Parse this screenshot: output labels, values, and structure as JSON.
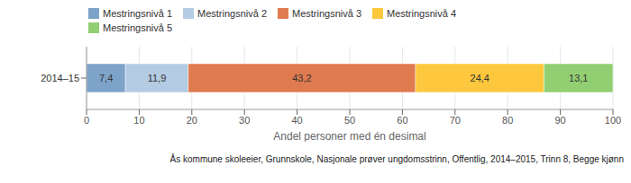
{
  "chart_data": {
    "type": "bar",
    "orientation": "horizontal",
    "stacked": true,
    "categories": [
      "2014–15"
    ],
    "series": [
      {
        "name": "Mestringsnivå 1",
        "color": "#7ea3c9",
        "values": [
          7.4
        ],
        "value_labels": [
          "7,4"
        ]
      },
      {
        "name": "Mestringsnivå 2",
        "color": "#b3cbe3",
        "values": [
          11.9
        ],
        "value_labels": [
          "11,9"
        ]
      },
      {
        "name": "Mestringsnivå 3",
        "color": "#e07b50",
        "values": [
          43.2
        ],
        "value_labels": [
          "43,2"
        ]
      },
      {
        "name": "Mestringsnivå 4",
        "color": "#fdc83d",
        "values": [
          24.4
        ],
        "value_labels": [
          "24,4"
        ]
      },
      {
        "name": "Mestringsnivå 5",
        "color": "#92cf72",
        "values": [
          13.1
        ],
        "value_labels": [
          "13,1"
        ]
      }
    ],
    "xlim": [
      0,
      100
    ],
    "xticks": [
      0,
      10,
      20,
      30,
      40,
      50,
      60,
      70,
      80,
      90,
      100
    ],
    "x_label": "Andel personer med én desimal",
    "annotation": "Ås kommune skoleeier, Grunnskole, Nasjonale prøver ungdomsstrinn, Offentlig, 2014–2015, Trinn 8, Begge kjønn",
    "grid": true,
    "data_labels": true,
    "legend": "top-left"
  }
}
